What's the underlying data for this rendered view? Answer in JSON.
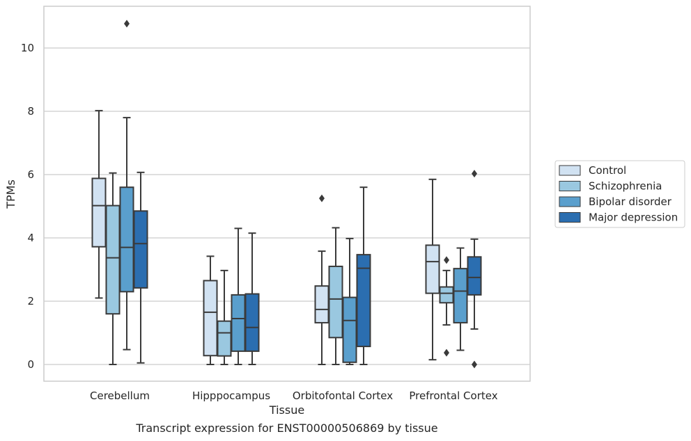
{
  "chart_data": {
    "type": "boxplot",
    "title": "",
    "caption": "Transcript expression for ENST00000506869 by tissue",
    "xlabel": "Tissue",
    "ylabel": "TPMs",
    "ylim": [
      -0.5,
      11.4
    ],
    "yticks": [
      0,
      2,
      4,
      6,
      8,
      10
    ],
    "grid": "horizontal",
    "legend_position": "right",
    "categories": [
      "Cerebellum",
      "Hipppocampus",
      "Orbitofontal Cortex",
      "Prefrontal Cortex"
    ],
    "series": [
      {
        "name": "Control",
        "color": "#d1e2f2",
        "boxes": [
          {
            "whislo": 2.1,
            "q1": 3.72,
            "med": 5.02,
            "q3": 5.88,
            "whishi": 8.02,
            "fliers": []
          },
          {
            "whislo": 0.0,
            "q1": 0.28,
            "med": 1.65,
            "q3": 2.65,
            "whishi": 3.42,
            "fliers": []
          },
          {
            "whislo": 0.0,
            "q1": 1.32,
            "med": 1.74,
            "q3": 2.48,
            "whishi": 3.58,
            "fliers": [
              5.25
            ]
          },
          {
            "whislo": 0.15,
            "q1": 2.25,
            "med": 3.25,
            "q3": 3.77,
            "whishi": 5.85,
            "fliers": []
          }
        ]
      },
      {
        "name": "Schizophrenia",
        "color": "#9ac8e0",
        "boxes": [
          {
            "whislo": 0.0,
            "q1": 1.6,
            "med": 3.37,
            "q3": 5.02,
            "whishi": 6.05,
            "fliers": []
          },
          {
            "whislo": 0.0,
            "q1": 0.27,
            "med": 1.0,
            "q3": 1.37,
            "whishi": 2.97,
            "fliers": []
          },
          {
            "whislo": 0.0,
            "q1": 0.85,
            "med": 2.07,
            "q3": 3.1,
            "whishi": 4.32,
            "fliers": []
          },
          {
            "whislo": 1.25,
            "q1": 1.95,
            "med": 2.25,
            "q3": 2.45,
            "whishi": 2.97,
            "fliers": [
              3.3,
              0.37
            ]
          }
        ]
      },
      {
        "name": "Bipolar disorder",
        "color": "#5a9fcd",
        "boxes": [
          {
            "whislo": 0.47,
            "q1": 2.3,
            "med": 3.7,
            "q3": 5.6,
            "whishi": 7.8,
            "fliers": [
              10.77
            ]
          },
          {
            "whislo": 0.0,
            "q1": 0.42,
            "med": 1.45,
            "q3": 2.2,
            "whishi": 4.3,
            "fliers": []
          },
          {
            "whislo": 0.0,
            "q1": 0.07,
            "med": 1.39,
            "q3": 2.12,
            "whishi": 3.98,
            "fliers": []
          },
          {
            "whislo": 0.45,
            "q1": 1.32,
            "med": 2.32,
            "q3": 3.03,
            "whishi": 3.68,
            "fliers": []
          }
        ]
      },
      {
        "name": "Major depression",
        "color": "#2b6eb0",
        "boxes": [
          {
            "whislo": 0.05,
            "q1": 2.42,
            "med": 3.82,
            "q3": 4.85,
            "whishi": 6.07,
            "fliers": []
          },
          {
            "whislo": 0.0,
            "q1": 0.42,
            "med": 1.17,
            "q3": 2.23,
            "whishi": 4.15,
            "fliers": []
          },
          {
            "whislo": 0.0,
            "q1": 0.57,
            "med": 3.04,
            "q3": 3.47,
            "whishi": 5.6,
            "fliers": []
          },
          {
            "whislo": 1.12,
            "q1": 2.2,
            "med": 2.75,
            "q3": 3.4,
            "whishi": 3.96,
            "fliers": [
              6.03,
              0.0
            ]
          }
        ]
      }
    ]
  }
}
